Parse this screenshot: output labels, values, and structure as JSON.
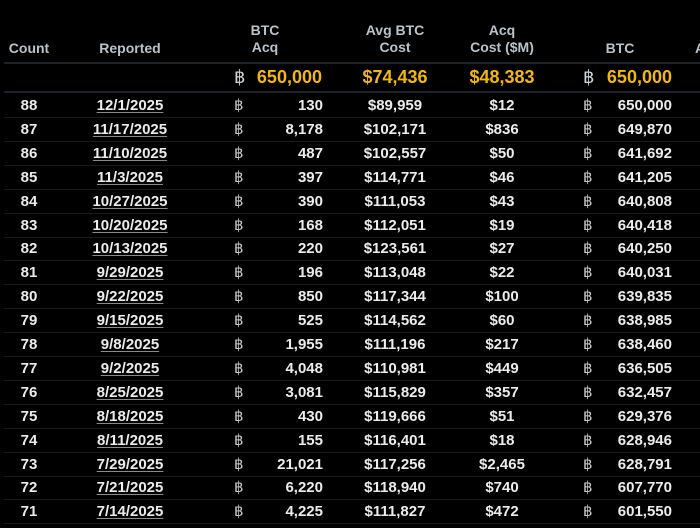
{
  "headers": {
    "count": "Count",
    "reported": "Reported",
    "btc_acq_1": "BTC",
    "btc_acq_2": "Acq",
    "avg_cost_1": "Avg BTC",
    "avg_cost_2": "Cost",
    "acq_cost_1": "Acq",
    "acq_cost_2": "Cost ($M)",
    "btc": "BTC",
    "next_partial": "A"
  },
  "btc_symbol": "฿",
  "totals": {
    "btc_acq": "650,000",
    "avg_cost": "$74,436",
    "acq_cost": "$48,383",
    "btc": "650,000"
  },
  "colors": {
    "accent": "#f2b616",
    "header_text": "#b9c3cb",
    "background": "#000000"
  },
  "rows": [
    {
      "count": "88",
      "reported": "12/1/2025",
      "btc_acq": "130",
      "avg_cost": "$89,959",
      "acq_cost": "$12",
      "btc": "650,000"
    },
    {
      "count": "87",
      "reported": "11/17/2025",
      "btc_acq": "8,178",
      "avg_cost": "$102,171",
      "acq_cost": "$836",
      "btc": "649,870"
    },
    {
      "count": "86",
      "reported": "11/10/2025",
      "btc_acq": "487",
      "avg_cost": "$102,557",
      "acq_cost": "$50",
      "btc": "641,692"
    },
    {
      "count": "85",
      "reported": "11/3/2025",
      "btc_acq": "397",
      "avg_cost": "$114,771",
      "acq_cost": "$46",
      "btc": "641,205"
    },
    {
      "count": "84",
      "reported": "10/27/2025",
      "btc_acq": "390",
      "avg_cost": "$111,053",
      "acq_cost": "$43",
      "btc": "640,808"
    },
    {
      "count": "83",
      "reported": "10/20/2025",
      "btc_acq": "168",
      "avg_cost": "$112,051",
      "acq_cost": "$19",
      "btc": "640,418"
    },
    {
      "count": "82",
      "reported": "10/13/2025",
      "btc_acq": "220",
      "avg_cost": "$123,561",
      "acq_cost": "$27",
      "btc": "640,250"
    },
    {
      "count": "81",
      "reported": "9/29/2025",
      "btc_acq": "196",
      "avg_cost": "$113,048",
      "acq_cost": "$22",
      "btc": "640,031"
    },
    {
      "count": "80",
      "reported": "9/22/2025",
      "btc_acq": "850",
      "avg_cost": "$117,344",
      "acq_cost": "$100",
      "btc": "639,835"
    },
    {
      "count": "79",
      "reported": "9/15/2025",
      "btc_acq": "525",
      "avg_cost": "$114,562",
      "acq_cost": "$60",
      "btc": "638,985"
    },
    {
      "count": "78",
      "reported": "9/8/2025",
      "btc_acq": "1,955",
      "avg_cost": "$111,196",
      "acq_cost": "$217",
      "btc": "638,460"
    },
    {
      "count": "77",
      "reported": "9/2/2025",
      "btc_acq": "4,048",
      "avg_cost": "$110,981",
      "acq_cost": "$449",
      "btc": "636,505"
    },
    {
      "count": "76",
      "reported": "8/25/2025",
      "btc_acq": "3,081",
      "avg_cost": "$115,829",
      "acq_cost": "$357",
      "btc": "632,457"
    },
    {
      "count": "75",
      "reported": "8/18/2025",
      "btc_acq": "430",
      "avg_cost": "$119,666",
      "acq_cost": "$51",
      "btc": "629,376"
    },
    {
      "count": "74",
      "reported": "8/11/2025",
      "btc_acq": "155",
      "avg_cost": "$116,401",
      "acq_cost": "$18",
      "btc": "628,946"
    },
    {
      "count": "73",
      "reported": "7/29/2025",
      "btc_acq": "21,021",
      "avg_cost": "$117,256",
      "acq_cost": "$2,465",
      "btc": "628,791"
    },
    {
      "count": "72",
      "reported": "7/21/2025",
      "btc_acq": "6,220",
      "avg_cost": "$118,940",
      "acq_cost": "$740",
      "btc": "607,770"
    },
    {
      "count": "71",
      "reported": "7/14/2025",
      "btc_acq": "4,225",
      "avg_cost": "$111,827",
      "acq_cost": "$472",
      "btc": "601,550"
    }
  ]
}
